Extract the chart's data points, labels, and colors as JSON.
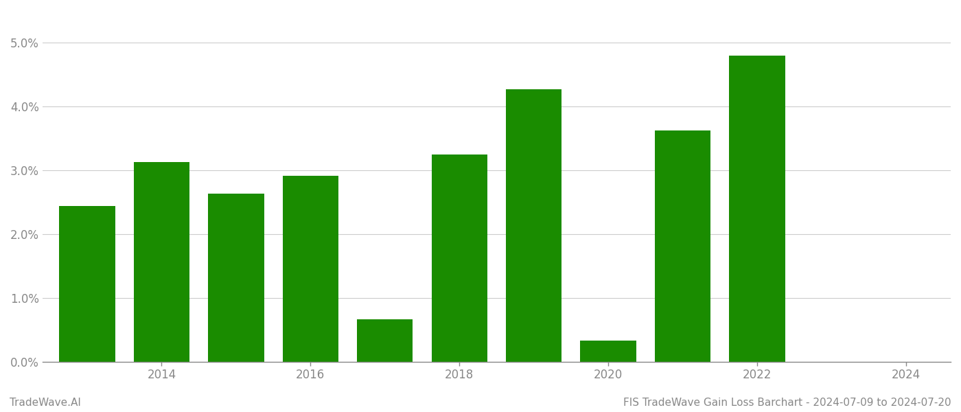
{
  "years": [
    2013,
    2014,
    2015,
    2016,
    2017,
    2018,
    2019,
    2020,
    2021,
    2022,
    2023
  ],
  "values": [
    0.0244,
    0.0312,
    0.0263,
    0.0291,
    0.0066,
    0.0324,
    0.0426,
    0.0033,
    0.0362,
    0.0479,
    0.0
  ],
  "bar_color": "#1a8c00",
  "background_color": "#ffffff",
  "grid_color": "#cccccc",
  "axis_color": "#888888",
  "tick_label_color": "#888888",
  "ylim": [
    0.0,
    0.055
  ],
  "yticks": [
    0.0,
    0.01,
    0.02,
    0.03,
    0.04,
    0.05
  ],
  "ytick_labels": [
    "0.0%",
    "1.0%",
    "2.0%",
    "3.0%",
    "4.0%",
    "5.0%"
  ],
  "xlim": [
    2012.4,
    2024.6
  ],
  "xticks": [
    2014,
    2016,
    2018,
    2020,
    2022,
    2024
  ],
  "bar_width": 0.75,
  "footer_left": "TradeWave.AI",
  "footer_right": "FIS TradeWave Gain Loss Barchart - 2024-07-09 to 2024-07-20",
  "footer_color": "#888888",
  "footer_fontsize": 11,
  "tick_fontsize": 12
}
